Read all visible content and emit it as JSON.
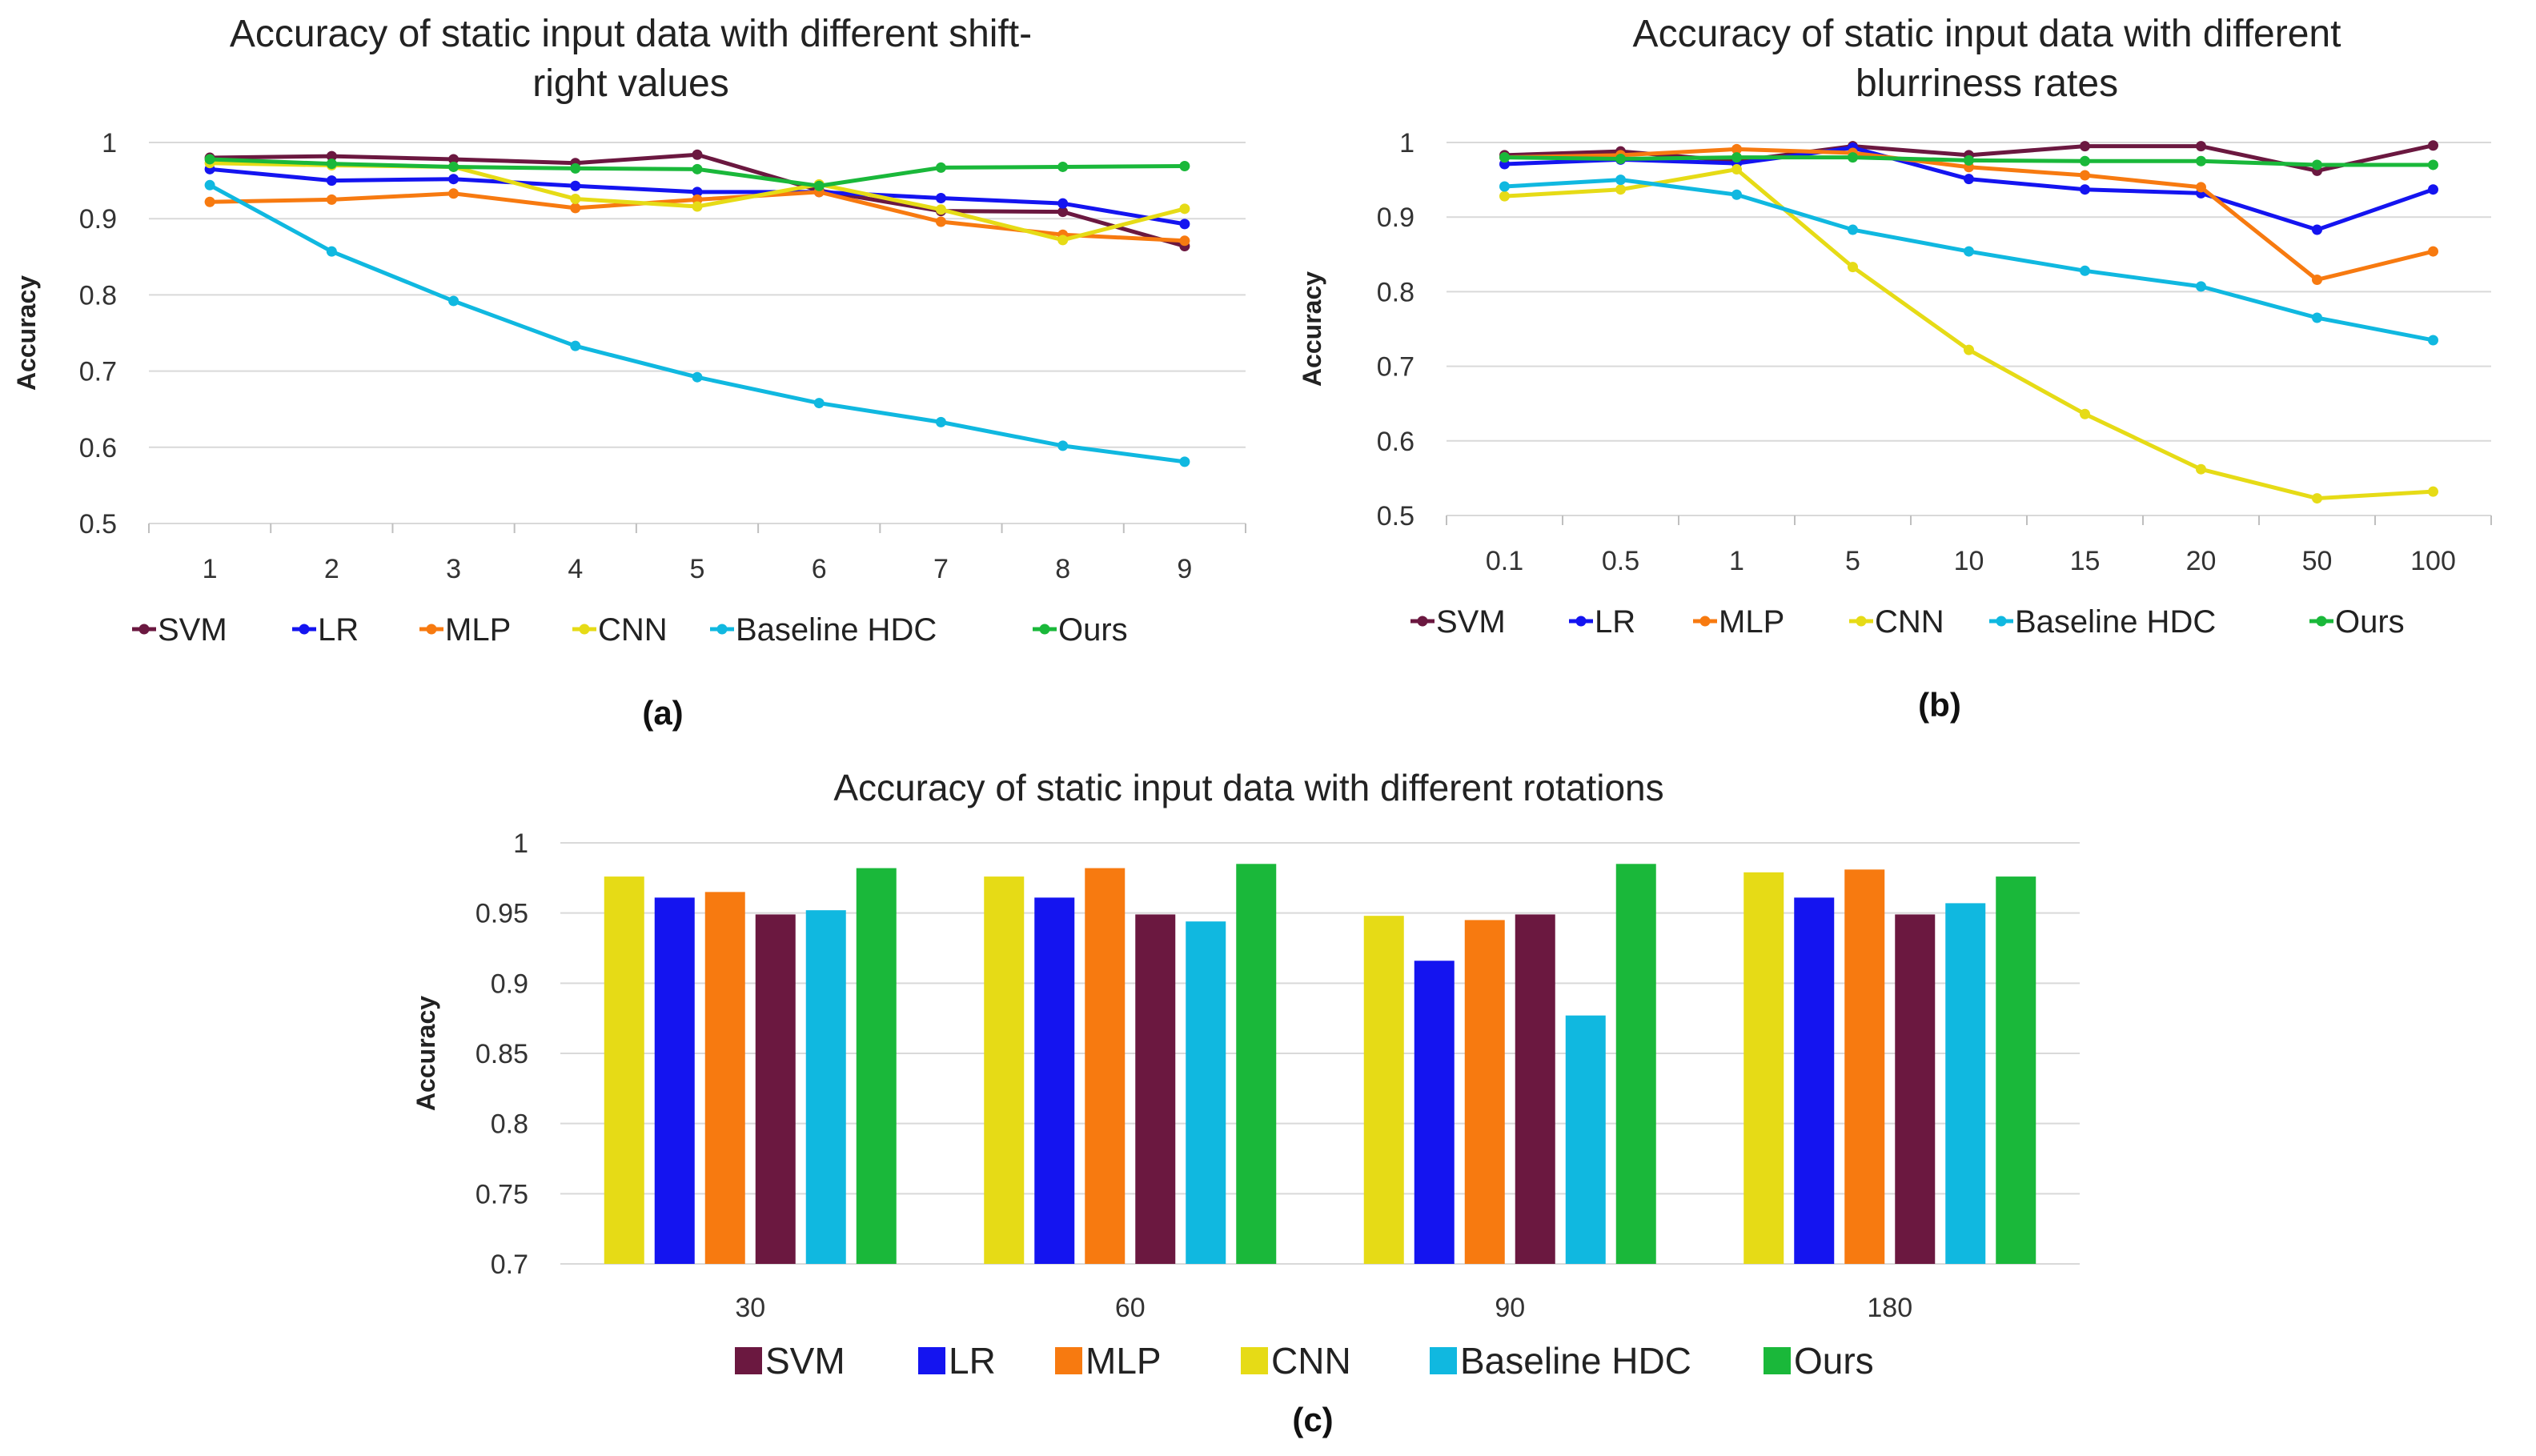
{
  "colors": {
    "SVM": "#6b1840",
    "LR": "#1414f0",
    "MLP": "#f77a10",
    "CNN": "#e6db16",
    "Baseline HDC": "#10b8e0",
    "Ours": "#1ab83a"
  },
  "chart_data": [
    {
      "type": "line",
      "title_lines": [
        "Accuracy of static input data with different shift-",
        "right values"
      ],
      "xlabel": "",
      "ylabel": "Accuracy",
      "ylim": [
        0.5,
        1.0
      ],
      "yticks": [
        "0.5",
        "0.6",
        "0.7",
        "0.8",
        "0.9",
        "1"
      ],
      "categories": [
        "1",
        "2",
        "3",
        "4",
        "5",
        "6",
        "7",
        "8",
        "9"
      ],
      "caption": "(a)",
      "legend": [
        "SVM",
        "LR",
        "MLP",
        "CNN",
        "Baseline HDC",
        "Ours"
      ],
      "series": [
        {
          "name": "SVM",
          "values": [
            0.98,
            0.982,
            0.978,
            0.973,
            0.984,
            0.937,
            0.91,
            0.909,
            0.864
          ]
        },
        {
          "name": "LR",
          "values": [
            0.965,
            0.95,
            0.952,
            0.943,
            0.935,
            0.935,
            0.927,
            0.92,
            0.893
          ]
        },
        {
          "name": "MLP",
          "values": [
            0.922,
            0.925,
            0.933,
            0.914,
            0.925,
            0.935,
            0.896,
            0.879,
            0.871
          ]
        },
        {
          "name": "CNN",
          "values": [
            0.973,
            0.97,
            0.968,
            0.926,
            0.916,
            0.945,
            0.912,
            0.872,
            0.913
          ]
        },
        {
          "name": "Baseline HDC",
          "values": [
            0.944,
            0.857,
            0.792,
            0.733,
            0.692,
            0.658,
            0.633,
            0.602,
            0.581
          ]
        },
        {
          "name": "Ours",
          "values": [
            0.978,
            0.972,
            0.968,
            0.966,
            0.965,
            0.943,
            0.967,
            0.968,
            0.969
          ]
        }
      ]
    },
    {
      "type": "line",
      "title_lines": [
        "Accuracy of static input data with different",
        "blurriness rates"
      ],
      "xlabel": "",
      "ylabel": "Accuracy",
      "ylim": [
        0.5,
        1.0
      ],
      "yticks": [
        "0.5",
        "0.6",
        "0.7",
        "0.8",
        "0.9",
        "1"
      ],
      "categories": [
        "0.1",
        "0.5",
        "1",
        "5",
        "10",
        "15",
        "20",
        "50",
        "100"
      ],
      "caption": "(b)",
      "legend": [
        "SVM",
        "LR",
        "MLP",
        "CNN",
        "Baseline HDC",
        "Ours"
      ],
      "series": [
        {
          "name": "SVM",
          "values": [
            0.983,
            0.988,
            0.975,
            0.995,
            0.983,
            0.995,
            0.995,
            0.962,
            0.996
          ]
        },
        {
          "name": "LR",
          "values": [
            0.971,
            0.977,
            0.972,
            0.993,
            0.951,
            0.937,
            0.932,
            0.883,
            0.937
          ]
        },
        {
          "name": "MLP",
          "values": [
            0.98,
            0.983,
            0.991,
            0.986,
            0.967,
            0.956,
            0.94,
            0.816,
            0.854
          ]
        },
        {
          "name": "CNN",
          "values": [
            0.928,
            0.937,
            0.964,
            0.833,
            0.722,
            0.636,
            0.562,
            0.523,
            0.532
          ]
        },
        {
          "name": "Baseline HDC",
          "values": [
            0.941,
            0.95,
            0.93,
            0.883,
            0.854,
            0.828,
            0.807,
            0.765,
            0.735
          ]
        },
        {
          "name": "Ours",
          "values": [
            0.98,
            0.978,
            0.98,
            0.98,
            0.976,
            0.975,
            0.975,
            0.97,
            0.97
          ]
        }
      ]
    },
    {
      "type": "bar",
      "title": "Accuracy of static input data with different rotations",
      "xlabel": "",
      "ylabel": "Accuracy",
      "ylim": [
        0.7,
        1.0
      ],
      "yticks": [
        "0.7",
        "0.75",
        "0.8",
        "0.85",
        "0.9",
        "0.95",
        "1"
      ],
      "categories": [
        "30",
        "60",
        "90",
        "180"
      ],
      "caption": "(c)",
      "legend": [
        "SVM",
        "LR",
        "MLP",
        "CNN",
        "Baseline HDC",
        "Ours"
      ],
      "series": [
        {
          "name": "CNN",
          "values": [
            0.976,
            0.976,
            0.948,
            0.979
          ]
        },
        {
          "name": "LR",
          "values": [
            0.961,
            0.961,
            0.916,
            0.961
          ]
        },
        {
          "name": "MLP",
          "values": [
            0.965,
            0.982,
            0.945,
            0.981
          ]
        },
        {
          "name": "SVM",
          "values": [
            0.949,
            0.949,
            0.949,
            0.949
          ]
        },
        {
          "name": "Baseline HDC",
          "values": [
            0.952,
            0.944,
            0.877,
            0.957
          ]
        },
        {
          "name": "Ours",
          "values": [
            0.982,
            0.985,
            0.985,
            0.976
          ]
        }
      ]
    }
  ]
}
